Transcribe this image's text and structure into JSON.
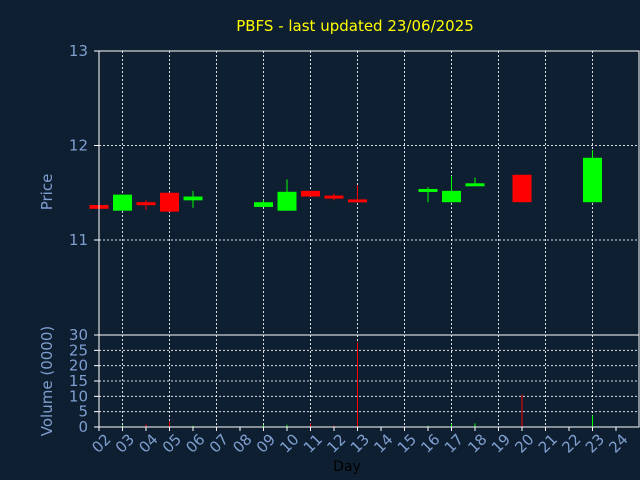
{
  "chart_data": {
    "type": "candlestick",
    "title": "PBFS - last updated 23/06/2025",
    "xlabel": "Day",
    "price_panel": {
      "ylabel": "Price",
      "ylim": [
        11.0,
        13.0
      ],
      "y_ticks": [
        "11",
        "12",
        "13"
      ]
    },
    "volume_panel": {
      "ylabel": "Volume (0000)",
      "ylim": [
        0,
        30
      ],
      "y_ticks": [
        "0",
        "5",
        "10",
        "15",
        "20",
        "25",
        "30"
      ]
    },
    "x_ticks": [
      "02",
      "03",
      "04",
      "05",
      "06",
      "07",
      "08",
      "09",
      "10",
      "11",
      "12",
      "13",
      "14",
      "15",
      "16",
      "17",
      "18",
      "19",
      "20",
      "21",
      "22",
      "23",
      "24"
    ],
    "candles": [
      {
        "day": "02",
        "open": 11.37,
        "close": 11.33,
        "high": 11.37,
        "low": 11.33,
        "volume": 0.3
      },
      {
        "day": "03",
        "open": 11.31,
        "close": 11.48,
        "high": 11.48,
        "low": 11.31,
        "volume": 0.5
      },
      {
        "day": "04",
        "open": 11.4,
        "close": 11.38,
        "high": 11.42,
        "low": 11.32,
        "volume": 0.8
      },
      {
        "day": "05",
        "open": 11.5,
        "close": 11.3,
        "high": 11.5,
        "low": 11.3,
        "volume": 1.8
      },
      {
        "day": "06",
        "open": 11.42,
        "close": 11.46,
        "high": 11.52,
        "low": 11.34,
        "volume": 0.4
      },
      {
        "day": "09",
        "open": 11.35,
        "close": 11.4,
        "high": 11.42,
        "low": 11.35,
        "volume": 0.6
      },
      {
        "day": "10",
        "open": 11.31,
        "close": 11.51,
        "high": 11.64,
        "low": 11.31,
        "volume": 0.7
      },
      {
        "day": "11",
        "open": 11.52,
        "close": 11.46,
        "high": 11.52,
        "low": 11.46,
        "volume": 1.2
      },
      {
        "day": "12",
        "open": 11.47,
        "close": 11.45,
        "high": 11.49,
        "low": 11.42,
        "volume": 0.5
      },
      {
        "day": "13",
        "open": 11.43,
        "close": 11.4,
        "high": 11.58,
        "low": 11.4,
        "volume": 27.5
      },
      {
        "day": "16",
        "open": 11.52,
        "close": 11.54,
        "high": 11.56,
        "low": 11.4,
        "volume": 0.4
      },
      {
        "day": "17",
        "open": 11.4,
        "close": 11.52,
        "high": 11.68,
        "low": 11.4,
        "volume": 1.0
      },
      {
        "day": "18",
        "open": 11.57,
        "close": 11.6,
        "high": 11.66,
        "low": 11.57,
        "volume": 1.2
      },
      {
        "day": "20",
        "open": 11.69,
        "close": 11.4,
        "high": 11.69,
        "low": 11.4,
        "volume": 10.5
      },
      {
        "day": "23",
        "open": 11.4,
        "close": 11.87,
        "high": 11.95,
        "low": 11.4,
        "volume": 3.8
      }
    ],
    "colors": {
      "background": "#0f1f32",
      "up": "#00ff00",
      "down": "#ff0000",
      "title": "#ffff00",
      "axis_text": "#7f9fd0",
      "grid": "#ffffff"
    },
    "grid": true
  }
}
